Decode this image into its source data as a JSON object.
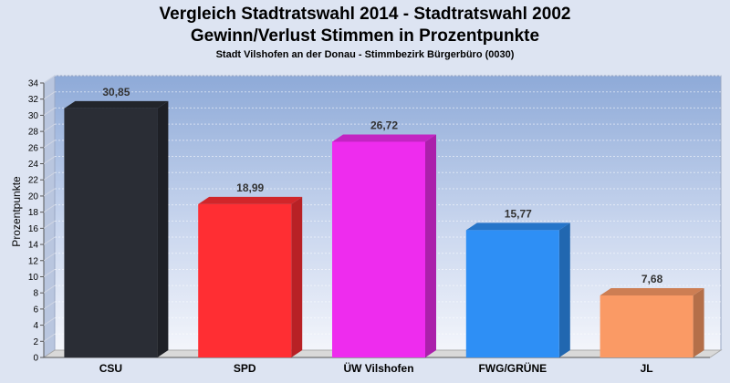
{
  "titles": {
    "line1": "Vergleich Stadtratswahl 2014 - Stadtratswahl 2002",
    "line2": "Gewinn/Verlust Stimmen in Prozentpunkte",
    "line3": "Stadt Vilshofen an der Donau - Stimmbezirk Bürgerbüro (0030)"
  },
  "chart_data": {
    "type": "bar",
    "title": "Vergleich Stadtratswahl 2014 - Stadtratswahl 2002",
    "subtitle": "Gewinn/Verlust Stimmen in Prozentpunkte",
    "xlabel": "",
    "ylabel": "Prozentpunkte",
    "ylim": [
      0,
      34
    ],
    "ytick_step": 2,
    "grid": true,
    "categories": [
      "CSU",
      "SPD",
      "ÜW Vilshofen",
      "FWG/GRÜNE",
      "JL"
    ],
    "values": [
      30.85,
      18.99,
      26.72,
      15.77,
      7.68
    ],
    "value_labels": [
      "30,85",
      "18,99",
      "26,72",
      "15,77",
      "7,68"
    ],
    "colors": [
      "#2a2d35",
      "#ff2e33",
      "#ee2cee",
      "#2e8ff5",
      "#fa9a65"
    ]
  }
}
